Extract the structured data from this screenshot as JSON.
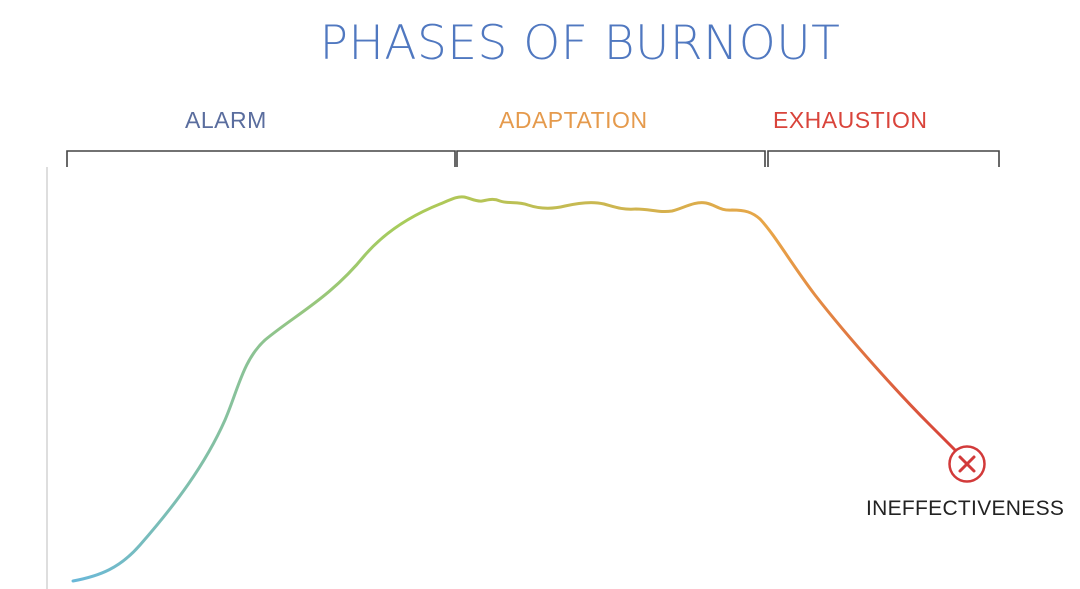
{
  "title": "PHASES OF BURNOUT",
  "phases": [
    {
      "label": "ALARM",
      "color": "#5a6d9e"
    },
    {
      "label": "ADAPTATION",
      "color": "#e59a4c"
    },
    {
      "label": "EXHAUSTION",
      "color": "#d9443b"
    }
  ],
  "end_marker": {
    "label": "INEFFECTIVENESS",
    "icon": "x-circle-icon",
    "color": "#d23a3a"
  },
  "curve_colors": {
    "start": "#6ab8d8",
    "middle": "#a8cc5a",
    "plateau_end": "#e8a548",
    "end": "#d63a38"
  },
  "bracket_color": "#444444"
}
